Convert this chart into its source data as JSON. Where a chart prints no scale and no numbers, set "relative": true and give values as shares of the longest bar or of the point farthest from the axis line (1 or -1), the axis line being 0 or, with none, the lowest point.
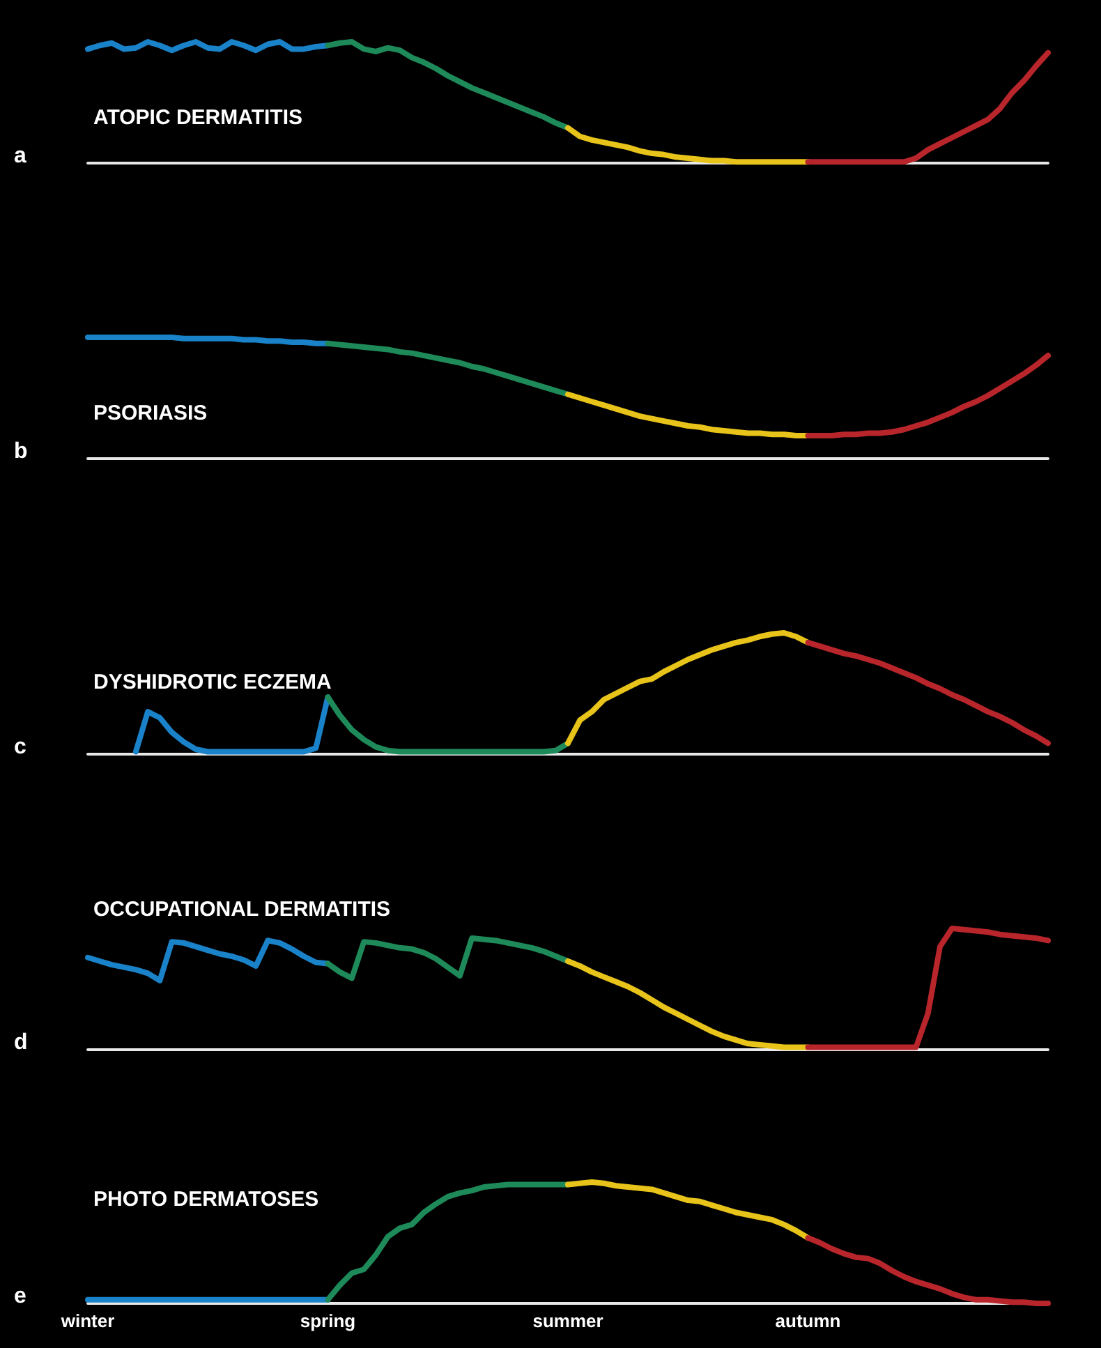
{
  "chart_data": [
    {
      "type": "line",
      "title": "ATOPIC DERMATITIS",
      "annotations": [
        "a"
      ],
      "relative": true,
      "grid": false,
      "line_style": "solid",
      "categories": [
        null,
        null,
        null,
        null,
        null,
        null,
        null,
        null,
        null,
        null,
        null,
        null,
        null,
        null,
        null,
        null,
        null,
        null,
        null,
        null,
        null,
        null,
        null,
        null,
        null,
        null,
        null,
        null,
        null,
        null,
        null,
        null,
        null,
        null,
        null,
        null,
        null,
        null,
        null,
        null,
        null,
        null,
        null,
        null,
        null,
        null,
        null,
        null,
        null,
        null,
        null,
        null,
        null,
        null,
        null,
        null,
        null,
        null,
        null,
        null,
        null,
        null,
        null,
        null,
        null,
        null,
        null,
        null,
        null,
        null,
        null,
        null,
        null,
        null,
        null,
        null,
        null,
        null,
        null,
        null,
        null
      ],
      "series": [
        {
          "color": "#1a82c8",
          "values": [
            0.94,
            0.97,
            0.99,
            0.94,
            0.95,
            1.0,
            0.97,
            0.93,
            0.97,
            1.0,
            0.95,
            0.94,
            1.0,
            0.97,
            0.93,
            0.98,
            1.0,
            0.94,
            0.94,
            0.96,
            0.97,
            null,
            null,
            null,
            null,
            null,
            null,
            null,
            null,
            null,
            null,
            null,
            null,
            null,
            null,
            null,
            null,
            null,
            null,
            null,
            null,
            null,
            null,
            null,
            null,
            null,
            null,
            null,
            null,
            null,
            null,
            null,
            null,
            null,
            null,
            null,
            null,
            null,
            null,
            null,
            null,
            null,
            null,
            null,
            null,
            null,
            null,
            null,
            null,
            null,
            null,
            null,
            null,
            null,
            null,
            null,
            null,
            null,
            null,
            null,
            null
          ]
        },
        {
          "color": "#1e8a5a",
          "values": [
            null,
            null,
            null,
            null,
            null,
            null,
            null,
            null,
            null,
            null,
            null,
            null,
            null,
            null,
            null,
            null,
            null,
            null,
            null,
            null,
            0.97,
            0.99,
            1.0,
            0.94,
            0.92,
            0.95,
            0.93,
            0.87,
            0.83,
            0.78,
            0.72,
            0.67,
            0.62,
            0.58,
            0.54,
            0.5,
            0.46,
            0.42,
            0.38,
            0.33,
            0.29,
            null,
            null,
            null,
            null,
            null,
            null,
            null,
            null,
            null,
            null,
            null,
            null,
            null,
            null,
            null,
            null,
            null,
            null,
            null,
            null,
            null,
            null,
            null,
            null,
            null,
            null,
            null,
            null,
            null,
            null,
            null,
            null,
            null,
            null,
            null,
            null,
            null,
            null,
            null,
            null
          ]
        },
        {
          "color": "#e8c41a",
          "values": [
            null,
            null,
            null,
            null,
            null,
            null,
            null,
            null,
            null,
            null,
            null,
            null,
            null,
            null,
            null,
            null,
            null,
            null,
            null,
            null,
            null,
            null,
            null,
            null,
            null,
            null,
            null,
            null,
            null,
            null,
            null,
            null,
            null,
            null,
            null,
            null,
            null,
            null,
            null,
            null,
            0.29,
            0.22,
            0.19,
            0.17,
            0.15,
            0.13,
            0.1,
            0.08,
            0.07,
            0.05,
            0.04,
            0.03,
            0.02,
            0.02,
            0.01,
            0.01,
            0.01,
            0.01,
            0.01,
            0.01,
            0.01,
            null,
            null,
            null,
            null,
            null,
            null,
            null,
            null,
            null,
            null,
            null,
            null,
            null,
            null,
            null,
            null,
            null,
            null,
            null,
            null
          ]
        },
        {
          "color": "#b8262c",
          "values": [
            null,
            null,
            null,
            null,
            null,
            null,
            null,
            null,
            null,
            null,
            null,
            null,
            null,
            null,
            null,
            null,
            null,
            null,
            null,
            null,
            null,
            null,
            null,
            null,
            null,
            null,
            null,
            null,
            null,
            null,
            null,
            null,
            null,
            null,
            null,
            null,
            null,
            null,
            null,
            null,
            null,
            null,
            null,
            null,
            null,
            null,
            null,
            null,
            null,
            null,
            null,
            null,
            null,
            null,
            null,
            null,
            null,
            null,
            null,
            null,
            0.01,
            0.01,
            0.01,
            0.01,
            0.01,
            0.01,
            0.01,
            0.01,
            0.01,
            0.04,
            0.11,
            0.16,
            0.21,
            0.26,
            0.31,
            0.36,
            0.45,
            0.58,
            0.68,
            0.8,
            0.91
          ]
        }
      ]
    },
    {
      "type": "line",
      "title": "PSORIASIS",
      "annotations": [
        "b"
      ],
      "relative": true,
      "grid": false,
      "line_style": "solid",
      "categories": [
        null,
        null,
        null,
        null,
        null,
        null,
        null,
        null,
        null,
        null,
        null,
        null,
        null,
        null,
        null,
        null,
        null,
        null,
        null,
        null,
        null,
        null,
        null,
        null,
        null,
        null,
        null,
        null,
        null,
        null,
        null,
        null,
        null,
        null,
        null,
        null,
        null,
        null,
        null,
        null,
        null,
        null,
        null,
        null,
        null,
        null,
        null,
        null,
        null,
        null,
        null,
        null,
        null,
        null,
        null,
        null,
        null,
        null,
        null,
        null,
        null,
        null,
        null,
        null,
        null,
        null,
        null,
        null,
        null,
        null,
        null,
        null,
        null,
        null,
        null,
        null,
        null,
        null,
        null,
        null,
        null
      ],
      "series": [
        {
          "color": "#1a82c8",
          "values": [
            1.0,
            1.0,
            1.0,
            1.0,
            1.0,
            1.0,
            1.0,
            1.0,
            0.99,
            0.99,
            0.99,
            0.99,
            0.99,
            0.98,
            0.98,
            0.97,
            0.97,
            0.96,
            0.96,
            0.95,
            0.95,
            null,
            null,
            null,
            null,
            null,
            null,
            null,
            null,
            null,
            null,
            null,
            null,
            null,
            null,
            null,
            null,
            null,
            null,
            null,
            null,
            null,
            null,
            null,
            null,
            null,
            null,
            null,
            null,
            null,
            null,
            null,
            null,
            null,
            null,
            null,
            null,
            null,
            null,
            null,
            null,
            null,
            null,
            null,
            null,
            null,
            null,
            null,
            null,
            null,
            null,
            null,
            null,
            null,
            null,
            null,
            null,
            null,
            null,
            null,
            null
          ]
        },
        {
          "color": "#1e8a5a",
          "values": [
            null,
            null,
            null,
            null,
            null,
            null,
            null,
            null,
            null,
            null,
            null,
            null,
            null,
            null,
            null,
            null,
            null,
            null,
            null,
            null,
            0.95,
            0.94,
            0.93,
            0.92,
            0.91,
            0.9,
            0.88,
            0.87,
            0.85,
            0.83,
            0.81,
            0.79,
            0.76,
            0.74,
            0.71,
            0.68,
            0.65,
            0.62,
            0.59,
            0.56,
            0.53,
            null,
            null,
            null,
            null,
            null,
            null,
            null,
            null,
            null,
            null,
            null,
            null,
            null,
            null,
            null,
            null,
            null,
            null,
            null,
            null,
            null,
            null,
            null,
            null,
            null,
            null,
            null,
            null,
            null,
            null,
            null,
            null,
            null,
            null,
            null,
            null,
            null,
            null,
            null,
            null
          ]
        },
        {
          "color": "#e8c41a",
          "values": [
            null,
            null,
            null,
            null,
            null,
            null,
            null,
            null,
            null,
            null,
            null,
            null,
            null,
            null,
            null,
            null,
            null,
            null,
            null,
            null,
            null,
            null,
            null,
            null,
            null,
            null,
            null,
            null,
            null,
            null,
            null,
            null,
            null,
            null,
            null,
            null,
            null,
            null,
            null,
            null,
            0.53,
            0.5,
            0.47,
            0.44,
            0.41,
            0.38,
            0.35,
            0.33,
            0.31,
            0.29,
            0.27,
            0.26,
            0.24,
            0.23,
            0.22,
            0.21,
            0.21,
            0.2,
            0.2,
            0.19,
            0.19,
            null,
            null,
            null,
            null,
            null,
            null,
            null,
            null,
            null,
            null,
            null,
            null,
            null,
            null,
            null,
            null,
            null,
            null,
            null,
            null
          ]
        },
        {
          "color": "#b8262c",
          "values": [
            null,
            null,
            null,
            null,
            null,
            null,
            null,
            null,
            null,
            null,
            null,
            null,
            null,
            null,
            null,
            null,
            null,
            null,
            null,
            null,
            null,
            null,
            null,
            null,
            null,
            null,
            null,
            null,
            null,
            null,
            null,
            null,
            null,
            null,
            null,
            null,
            null,
            null,
            null,
            null,
            null,
            null,
            null,
            null,
            null,
            null,
            null,
            null,
            null,
            null,
            null,
            null,
            null,
            null,
            null,
            null,
            null,
            null,
            null,
            null,
            0.19,
            0.19,
            0.19,
            0.2,
            0.2,
            0.21,
            0.21,
            0.22,
            0.24,
            0.27,
            0.3,
            0.34,
            0.38,
            0.43,
            0.47,
            0.52,
            0.58,
            0.64,
            0.7,
            0.77,
            0.85
          ]
        }
      ]
    },
    {
      "type": "line",
      "title": "DYSHIDROTIC ECZEMA",
      "annotations": [
        "c"
      ],
      "relative": true,
      "grid": false,
      "line_style": "solid",
      "categories": [
        null,
        null,
        null,
        null,
        null,
        null,
        null,
        null,
        null,
        null,
        null,
        null,
        null,
        null,
        null,
        null,
        null,
        null,
        null,
        null,
        null,
        null,
        null,
        null,
        null,
        null,
        null,
        null,
        null,
        null,
        null,
        null,
        null,
        null,
        null,
        null,
        null,
        null,
        null,
        null,
        null,
        null,
        null,
        null,
        null,
        null,
        null,
        null,
        null,
        null,
        null,
        null,
        null,
        null,
        null,
        null,
        null,
        null,
        null,
        null,
        null,
        null,
        null,
        null,
        null,
        null,
        null,
        null,
        null,
        null,
        null,
        null,
        null,
        null,
        null,
        null,
        null,
        null,
        null,
        null,
        null
      ],
      "series": [
        {
          "color": "#1a82c8",
          "values": [
            null,
            null,
            null,
            null,
            0.02,
            0.35,
            0.3,
            0.18,
            0.1,
            0.04,
            0.02,
            0.02,
            0.02,
            0.02,
            0.02,
            0.02,
            0.02,
            0.02,
            0.02,
            0.05,
            0.47,
            null,
            null,
            null,
            null,
            null,
            null,
            null,
            null,
            null,
            null,
            null,
            null,
            null,
            null,
            null,
            null,
            null,
            null,
            null,
            null,
            null,
            null,
            null,
            null,
            null,
            null,
            null,
            null,
            null,
            null,
            null,
            null,
            null,
            null,
            null,
            null,
            null,
            null,
            null,
            null,
            null,
            null,
            null,
            null,
            null,
            null,
            null,
            null,
            null,
            null,
            null,
            null,
            null,
            null,
            null,
            null,
            null,
            null,
            null,
            null
          ]
        },
        {
          "color": "#1e8a5a",
          "values": [
            null,
            null,
            null,
            null,
            null,
            null,
            null,
            null,
            null,
            null,
            null,
            null,
            null,
            null,
            null,
            null,
            null,
            null,
            null,
            null,
            0.47,
            0.32,
            0.2,
            0.12,
            0.06,
            0.03,
            0.02,
            0.02,
            0.02,
            0.02,
            0.02,
            0.02,
            0.02,
            0.02,
            0.02,
            0.02,
            0.02,
            0.02,
            0.02,
            0.03,
            0.09,
            null,
            null,
            null,
            null,
            null,
            null,
            null,
            null,
            null,
            null,
            null,
            null,
            null,
            null,
            null,
            null,
            null,
            null,
            null,
            null,
            null,
            null,
            null,
            null,
            null,
            null,
            null,
            null,
            null,
            null,
            null,
            null,
            null,
            null,
            null,
            null,
            null,
            null,
            null,
            null
          ]
        },
        {
          "color": "#e8c41a",
          "values": [
            null,
            null,
            null,
            null,
            null,
            null,
            null,
            null,
            null,
            null,
            null,
            null,
            null,
            null,
            null,
            null,
            null,
            null,
            null,
            null,
            null,
            null,
            null,
            null,
            null,
            null,
            null,
            null,
            null,
            null,
            null,
            null,
            null,
            null,
            null,
            null,
            null,
            null,
            null,
            null,
            0.09,
            0.28,
            0.35,
            0.45,
            0.5,
            0.55,
            0.6,
            0.62,
            0.68,
            0.73,
            0.78,
            0.82,
            0.86,
            0.89,
            0.92,
            0.94,
            0.97,
            0.99,
            1.0,
            0.97,
            0.92,
            null,
            null,
            null,
            null,
            null,
            null,
            null,
            null,
            null,
            null,
            null,
            null,
            null,
            null,
            null,
            null,
            null,
            null,
            null,
            null
          ]
        },
        {
          "color": "#b8262c",
          "values": [
            null,
            null,
            null,
            null,
            null,
            null,
            null,
            null,
            null,
            null,
            null,
            null,
            null,
            null,
            null,
            null,
            null,
            null,
            null,
            null,
            null,
            null,
            null,
            null,
            null,
            null,
            null,
            null,
            null,
            null,
            null,
            null,
            null,
            null,
            null,
            null,
            null,
            null,
            null,
            null,
            null,
            null,
            null,
            null,
            null,
            null,
            null,
            null,
            null,
            null,
            null,
            null,
            null,
            null,
            null,
            null,
            null,
            null,
            null,
            null,
            0.92,
            0.89,
            0.86,
            0.83,
            0.81,
            0.78,
            0.75,
            0.71,
            0.67,
            0.63,
            0.58,
            0.54,
            0.49,
            0.45,
            0.4,
            0.35,
            0.31,
            0.26,
            0.2,
            0.15,
            0.09
          ]
        }
      ]
    },
    {
      "type": "line",
      "title": "OCCUPATIONAL DERMATITIS",
      "annotations": [
        "d"
      ],
      "relative": true,
      "grid": false,
      "line_style": "solid",
      "categories": [
        null,
        null,
        null,
        null,
        null,
        null,
        null,
        null,
        null,
        null,
        null,
        null,
        null,
        null,
        null,
        null,
        null,
        null,
        null,
        null,
        null,
        null,
        null,
        null,
        null,
        null,
        null,
        null,
        null,
        null,
        null,
        null,
        null,
        null,
        null,
        null,
        null,
        null,
        null,
        null,
        null,
        null,
        null,
        null,
        null,
        null,
        null,
        null,
        null,
        null,
        null,
        null,
        null,
        null,
        null,
        null,
        null,
        null,
        null,
        null,
        null,
        null,
        null,
        null,
        null,
        null,
        null,
        null,
        null,
        null,
        null,
        null,
        null,
        null,
        null,
        null,
        null,
        null,
        null,
        null,
        null
      ],
      "series": [
        {
          "color": "#1a82c8",
          "values": [
            0.76,
            0.73,
            0.7,
            0.68,
            0.66,
            0.63,
            0.57,
            0.89,
            0.88,
            0.85,
            0.82,
            0.79,
            0.77,
            0.74,
            0.69,
            0.9,
            0.88,
            0.83,
            0.77,
            0.72,
            0.71,
            null,
            null,
            null,
            null,
            null,
            null,
            null,
            null,
            null,
            null,
            null,
            null,
            null,
            null,
            null,
            null,
            null,
            null,
            null,
            null,
            null,
            null,
            null,
            null,
            null,
            null,
            null,
            null,
            null,
            null,
            null,
            null,
            null,
            null,
            null,
            null,
            null,
            null,
            null,
            null,
            null,
            null,
            null,
            null,
            null,
            null,
            null,
            null,
            null,
            null,
            null,
            null,
            null,
            null,
            null,
            null,
            null,
            null,
            null,
            null
          ]
        },
        {
          "color": "#1e8a5a",
          "values": [
            null,
            null,
            null,
            null,
            null,
            null,
            null,
            null,
            null,
            null,
            null,
            null,
            null,
            null,
            null,
            null,
            null,
            null,
            null,
            null,
            0.71,
            0.64,
            0.59,
            0.89,
            0.88,
            0.86,
            0.84,
            0.83,
            0.8,
            0.75,
            0.68,
            0.61,
            0.92,
            0.91,
            0.9,
            0.88,
            0.86,
            0.84,
            0.81,
            0.77,
            0.73,
            null,
            null,
            null,
            null,
            null,
            null,
            null,
            null,
            null,
            null,
            null,
            null,
            null,
            null,
            null,
            null,
            null,
            null,
            null,
            null,
            null,
            null,
            null,
            null,
            null,
            null,
            null,
            null,
            null,
            null,
            null,
            null,
            null,
            null,
            null,
            null,
            null,
            null,
            null,
            null
          ]
        },
        {
          "color": "#e8c41a",
          "values": [
            null,
            null,
            null,
            null,
            null,
            null,
            null,
            null,
            null,
            null,
            null,
            null,
            null,
            null,
            null,
            null,
            null,
            null,
            null,
            null,
            null,
            null,
            null,
            null,
            null,
            null,
            null,
            null,
            null,
            null,
            null,
            null,
            null,
            null,
            null,
            null,
            null,
            null,
            null,
            null,
            0.73,
            0.69,
            0.64,
            0.6,
            0.56,
            0.52,
            0.47,
            0.41,
            0.35,
            0.3,
            0.25,
            0.2,
            0.15,
            0.11,
            0.08,
            0.05,
            0.04,
            0.03,
            0.02,
            0.02,
            0.02,
            null,
            null,
            null,
            null,
            null,
            null,
            null,
            null,
            null,
            null,
            null,
            null,
            null,
            null,
            null,
            null,
            null,
            null,
            null,
            null
          ]
        },
        {
          "color": "#b8262c",
          "values": [
            null,
            null,
            null,
            null,
            null,
            null,
            null,
            null,
            null,
            null,
            null,
            null,
            null,
            null,
            null,
            null,
            null,
            null,
            null,
            null,
            null,
            null,
            null,
            null,
            null,
            null,
            null,
            null,
            null,
            null,
            null,
            null,
            null,
            null,
            null,
            null,
            null,
            null,
            null,
            null,
            null,
            null,
            null,
            null,
            null,
            null,
            null,
            null,
            null,
            null,
            null,
            null,
            null,
            null,
            null,
            null,
            null,
            null,
            null,
            null,
            0.02,
            0.02,
            0.02,
            0.02,
            0.02,
            0.02,
            0.02,
            0.02,
            0.02,
            0.02,
            0.3,
            0.85,
            1.0,
            0.99,
            0.98,
            0.97,
            0.95,
            0.94,
            0.93,
            0.92,
            0.9
          ]
        }
      ]
    },
    {
      "type": "line",
      "title": "PHOTO DERMATOSES",
      "annotations": [
        "e"
      ],
      "relative": true,
      "grid": false,
      "line_style": "solid",
      "categories": [
        "winter",
        null,
        null,
        null,
        null,
        null,
        null,
        null,
        null,
        null,
        null,
        null,
        null,
        null,
        null,
        null,
        null,
        null,
        null,
        null,
        "spring",
        null,
        null,
        null,
        null,
        null,
        null,
        null,
        null,
        null,
        null,
        null,
        null,
        null,
        null,
        null,
        null,
        null,
        null,
        null,
        "summer",
        null,
        null,
        null,
        null,
        null,
        null,
        null,
        null,
        null,
        null,
        null,
        null,
        null,
        null,
        null,
        null,
        null,
        null,
        null,
        "autumn",
        null,
        null,
        null,
        null,
        null,
        null,
        null,
        null,
        null,
        null,
        null,
        null,
        null,
        null,
        null,
        null,
        null,
        null,
        null,
        null
      ],
      "series": [
        {
          "color": "#1a82c8",
          "values": [
            0.03,
            0.03,
            0.03,
            0.03,
            0.03,
            0.03,
            0.03,
            0.03,
            0.03,
            0.03,
            0.03,
            0.03,
            0.03,
            0.03,
            0.03,
            0.03,
            0.03,
            0.03,
            0.03,
            0.03,
            0.03,
            null,
            null,
            null,
            null,
            null,
            null,
            null,
            null,
            null,
            null,
            null,
            null,
            null,
            null,
            null,
            null,
            null,
            null,
            null,
            null,
            null,
            null,
            null,
            null,
            null,
            null,
            null,
            null,
            null,
            null,
            null,
            null,
            null,
            null,
            null,
            null,
            null,
            null,
            null,
            null,
            null,
            null,
            null,
            null,
            null,
            null,
            null,
            null,
            null,
            null,
            null,
            null,
            null,
            null,
            null,
            null,
            null,
            null,
            null,
            null
          ]
        },
        {
          "color": "#1e8a5a",
          "values": [
            null,
            null,
            null,
            null,
            null,
            null,
            null,
            null,
            null,
            null,
            null,
            null,
            null,
            null,
            null,
            null,
            null,
            null,
            null,
            null,
            0.03,
            0.15,
            0.25,
            0.28,
            0.4,
            0.55,
            0.62,
            0.65,
            0.75,
            0.82,
            0.88,
            0.91,
            0.93,
            0.96,
            0.97,
            0.98,
            0.98,
            0.98,
            0.98,
            0.98,
            0.98,
            null,
            null,
            null,
            null,
            null,
            null,
            null,
            null,
            null,
            null,
            null,
            null,
            null,
            null,
            null,
            null,
            null,
            null,
            null,
            null,
            null,
            null,
            null,
            null,
            null,
            null,
            null,
            null,
            null,
            null,
            null,
            null,
            null,
            null,
            null,
            null,
            null,
            null,
            null,
            null
          ]
        },
        {
          "color": "#e8c41a",
          "values": [
            null,
            null,
            null,
            null,
            null,
            null,
            null,
            null,
            null,
            null,
            null,
            null,
            null,
            null,
            null,
            null,
            null,
            null,
            null,
            null,
            null,
            null,
            null,
            null,
            null,
            null,
            null,
            null,
            null,
            null,
            null,
            null,
            null,
            null,
            null,
            null,
            null,
            null,
            null,
            null,
            0.98,
            0.99,
            1.0,
            0.99,
            0.97,
            0.96,
            0.95,
            0.94,
            0.91,
            0.88,
            0.85,
            0.84,
            0.81,
            0.78,
            0.75,
            0.73,
            0.71,
            0.69,
            0.65,
            0.6,
            0.54,
            null,
            null,
            null,
            null,
            null,
            null,
            null,
            null,
            null,
            null,
            null,
            null,
            null,
            null,
            null,
            null,
            null,
            null,
            null,
            null
          ]
        },
        {
          "color": "#b8262c",
          "values": [
            null,
            null,
            null,
            null,
            null,
            null,
            null,
            null,
            null,
            null,
            null,
            null,
            null,
            null,
            null,
            null,
            null,
            null,
            null,
            null,
            null,
            null,
            null,
            null,
            null,
            null,
            null,
            null,
            null,
            null,
            null,
            null,
            null,
            null,
            null,
            null,
            null,
            null,
            null,
            null,
            null,
            null,
            null,
            null,
            null,
            null,
            null,
            null,
            null,
            null,
            null,
            null,
            null,
            null,
            null,
            null,
            null,
            null,
            null,
            null,
            0.54,
            0.5,
            0.45,
            0.41,
            0.38,
            0.37,
            0.33,
            0.27,
            0.22,
            0.18,
            0.15,
            0.12,
            0.08,
            0.05,
            0.03,
            0.03,
            0.02,
            0.01,
            0.01,
            0,
            0
          ]
        }
      ]
    }
  ]
}
